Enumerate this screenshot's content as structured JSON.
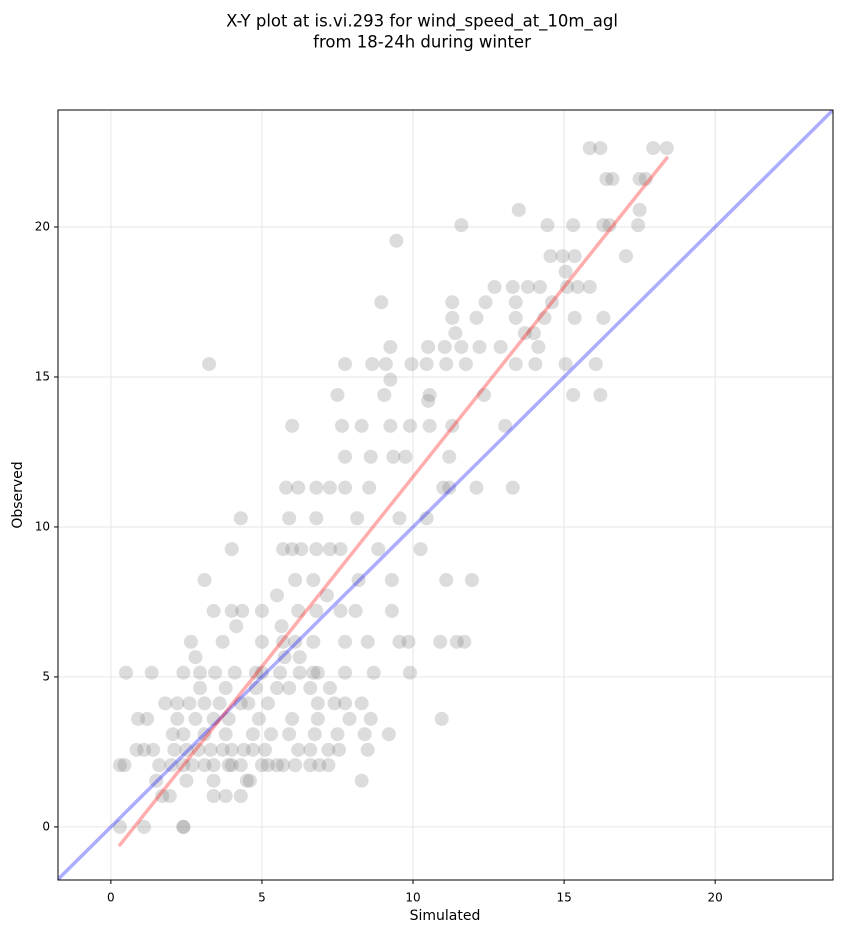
{
  "chart_data": {
    "type": "scatter",
    "title": [
      "X-Y plot at is.vi.293 for wind_speed_at_10m_agl",
      "from 18-24h during winter"
    ],
    "xlabel": "Simulated",
    "ylabel": "Observed",
    "xlim": [
      -1.75,
      23.9
    ],
    "ylim": [
      -1.77,
      23.9
    ],
    "xticks": [
      0,
      5,
      10,
      15,
      20
    ],
    "yticks": [
      0,
      5,
      10,
      15,
      20
    ],
    "grid": true,
    "color": "#808080",
    "alpha": 0.28,
    "x": [
      0.3,
      1.1,
      2.4,
      2.4,
      1.7,
      1.95,
      3.4,
      3.8,
      4.3,
      1.5,
      2.5,
      3.4,
      4.5,
      4.6,
      8.3,
      0.3,
      0.45,
      1.6,
      2.0,
      2.4,
      2.7,
      3.1,
      3.4,
      3.9,
      4.0,
      4.3,
      5.0,
      5.2,
      5.5,
      5.7,
      6.1,
      6.6,
      6.9,
      7.2,
      0.85,
      1.1,
      1.4,
      2.1,
      2.5,
      2.9,
      3.3,
      3.7,
      4.0,
      4.4,
      4.7,
      5.1,
      6.2,
      6.6,
      7.2,
      7.55,
      8.5,
      2.05,
      2.4,
      3.1,
      3.8,
      4.7,
      5.3,
      5.9,
      6.75,
      7.5,
      8.4,
      9.2,
      0.9,
      1.2,
      2.2,
      2.8,
      3.4,
      3.9,
      4.9,
      6.0,
      6.85,
      7.9,
      8.6,
      10.95,
      1.8,
      2.2,
      2.6,
      3.1,
      3.6,
      4.3,
      4.55,
      5.2,
      6.85,
      7.4,
      7.75,
      8.3,
      2.95,
      3.8,
      4.8,
      5.5,
      5.9,
      6.6,
      7.25,
      0.5,
      1.35,
      2.4,
      2.95,
      3.45,
      4.1,
      4.8,
      5.0,
      5.6,
      6.25,
      6.7,
      6.85,
      7.75,
      8.7,
      9.9,
      2.8,
      5.75,
      6.25,
      2.65,
      3.7,
      5.0,
      5.7,
      6.1,
      6.7,
      7.75,
      8.5,
      9.55,
      9.85,
      10.9,
      11.45,
      11.7,
      4.15,
      5.65,
      3.4,
      4.0,
      4.35,
      5.0,
      6.2,
      6.8,
      7.6,
      8.1,
      9.3,
      5.5,
      7.15,
      3.1,
      6.1,
      6.7,
      8.2,
      9.3,
      11.1,
      11.95,
      4.0,
      5.7,
      6.0,
      6.3,
      6.8,
      7.25,
      7.6,
      8.85,
      10.25,
      4.3,
      5.9,
      6.8,
      8.15,
      9.55,
      10.45,
      5.8,
      6.2,
      6.8,
      7.25,
      7.75,
      8.55,
      11.0,
      11.2,
      12.1,
      13.3,
      7.75,
      8.6,
      9.35,
      9.75,
      11.2,
      6.0,
      7.65,
      8.3,
      9.25,
      9.9,
      10.55,
      11.3,
      13.05,
      7.5,
      9.05,
      10.55,
      12.35,
      15.3,
      16.2,
      3.25,
      7.75,
      8.65,
      9.1,
      9.95,
      10.45,
      11.1,
      11.75,
      13.4,
      14.05,
      15.05,
      16.05,
      9.25,
      10.5,
      11.05,
      11.6,
      12.2,
      12.9,
      14.15,
      11.4,
      13.7,
      14.0,
      11.3,
      12.1,
      13.4,
      14.35,
      15.35,
      16.3,
      8.95,
      11.3,
      12.4,
      13.4,
      14.6,
      12.7,
      13.3,
      13.8,
      14.2,
      15.1,
      15.45,
      15.85,
      15.05,
      14.55,
      14.95,
      15.35,
      17.05,
      9.45,
      11.6,
      14.45,
      15.3,
      16.3,
      16.5,
      17.45,
      13.5,
      17.5,
      16.4,
      16.6,
      17.5,
      17.7,
      15.85,
      16.2,
      17.95,
      18.4,
      9.25,
      10.5
    ],
    "values": [
      0,
      0,
      0,
      0,
      1.03,
      1.03,
      1.03,
      1.03,
      1.03,
      1.54,
      1.54,
      1.54,
      1.54,
      1.54,
      1.54,
      2.06,
      2.06,
      2.06,
      2.06,
      2.06,
      2.06,
      2.06,
      2.06,
      2.06,
      2.06,
      2.06,
      2.06,
      2.06,
      2.06,
      2.06,
      2.06,
      2.06,
      2.06,
      2.06,
      2.57,
      2.57,
      2.57,
      2.57,
      2.57,
      2.57,
      2.57,
      2.57,
      2.57,
      2.57,
      2.57,
      2.57,
      2.57,
      2.57,
      2.57,
      2.57,
      2.57,
      3.09,
      3.09,
      3.09,
      3.09,
      3.09,
      3.09,
      3.09,
      3.09,
      3.09,
      3.09,
      3.09,
      3.6,
      3.6,
      3.6,
      3.6,
      3.6,
      3.6,
      3.6,
      3.6,
      3.6,
      3.6,
      3.6,
      3.6,
      4.12,
      4.12,
      4.12,
      4.12,
      4.12,
      4.12,
      4.12,
      4.12,
      4.12,
      4.12,
      4.12,
      4.12,
      4.63,
      4.63,
      4.63,
      4.63,
      4.63,
      4.63,
      4.63,
      5.14,
      5.14,
      5.14,
      5.14,
      5.14,
      5.14,
      5.14,
      5.14,
      5.14,
      5.14,
      5.14,
      5.14,
      5.14,
      5.14,
      5.14,
      5.66,
      5.66,
      5.66,
      6.17,
      6.17,
      6.17,
      6.17,
      6.17,
      6.17,
      6.17,
      6.17,
      6.17,
      6.17,
      6.17,
      6.17,
      6.17,
      6.69,
      6.69,
      7.2,
      7.2,
      7.2,
      7.2,
      7.2,
      7.2,
      7.2,
      7.2,
      7.2,
      7.72,
      7.72,
      8.23,
      8.23,
      8.23,
      8.23,
      8.23,
      8.23,
      8.23,
      9.26,
      9.26,
      9.26,
      9.26,
      9.26,
      9.26,
      9.26,
      9.26,
      9.26,
      10.29,
      10.29,
      10.29,
      10.29,
      10.29,
      10.29,
      11.31,
      11.31,
      11.31,
      11.31,
      11.31,
      11.31,
      11.31,
      11.31,
      11.31,
      11.31,
      12.34,
      12.34,
      12.34,
      12.34,
      12.34,
      13.37,
      13.37,
      13.37,
      13.37,
      13.37,
      13.37,
      13.37,
      13.37,
      14.4,
      14.4,
      14.4,
      14.4,
      14.4,
      14.4,
      15.43,
      15.43,
      15.43,
      15.43,
      15.43,
      15.43,
      15.43,
      15.43,
      15.43,
      15.43,
      15.43,
      15.43,
      16,
      16,
      16,
      16,
      16,
      16,
      16,
      16.46,
      16.46,
      16.46,
      16.97,
      16.97,
      16.97,
      16.97,
      16.97,
      16.97,
      17.49,
      17.49,
      17.49,
      17.49,
      17.49,
      18,
      18,
      18,
      18,
      18,
      18,
      18,
      18.51,
      19.03,
      19.03,
      19.03,
      19.03,
      19.54,
      20.06,
      20.06,
      20.06,
      20.06,
      20.06,
      20.06,
      20.57,
      20.57,
      21.6,
      21.6,
      21.6,
      21.6,
      22.63,
      22.63,
      22.63,
      22.63,
      14.91,
      14.2
    ],
    "reference_lines": [
      {
        "x": [
          -1.75,
          23.9
        ],
        "y": [
          -1.75,
          23.9
        ],
        "color": "#0000ff"
      },
      {
        "x": [
          0.3,
          18.4
        ],
        "y": [
          -0.6,
          22.3
        ],
        "color": "#ff0000"
      }
    ]
  }
}
